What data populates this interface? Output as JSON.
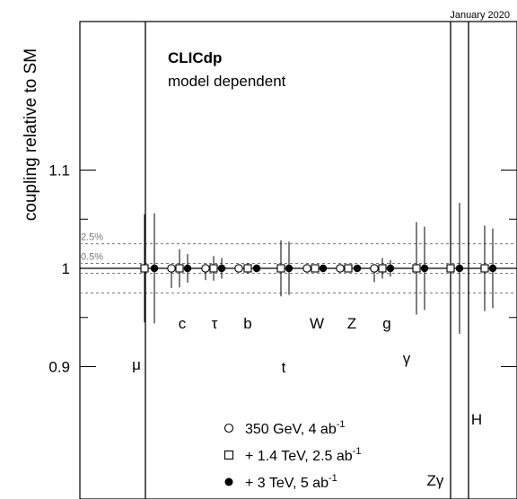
{
  "chart_data": {
    "type": "scatter",
    "title": "CLICdp",
    "subtitle": "model dependent",
    "date_label": "January 2020",
    "ylabel": "coupling relative to SM",
    "ylim": [
      0.88,
      1.125
    ],
    "y_ticks": [
      {
        "value": 0.9,
        "label": "0.9"
      },
      {
        "value": 1.0,
        "label": "1"
      },
      {
        "value": 1.1,
        "label": "1.1"
      }
    ],
    "y_minor_ticks": [
      0.95,
      1.05
    ],
    "reference_lines": [
      {
        "value": 1.025,
        "label": "2.5%"
      },
      {
        "value": 1.005,
        "label": "0.5%"
      },
      {
        "value": 0.995,
        "label": ""
      },
      {
        "value": 0.975,
        "label": ""
      }
    ],
    "categories": [
      "μ",
      "c",
      "τ",
      "b",
      "t",
      "W",
      "Z",
      "g",
      "γ",
      "Zγ",
      "H"
    ],
    "series": [
      {
        "name": "350 GeV, 4 ab",
        "name_sup": "-1",
        "marker": "open-circle",
        "values": [
          null,
          0.98,
          0.988,
          0.996,
          null,
          0.996,
          0.998,
          0.986,
          null,
          null,
          null
        ]
      },
      {
        "name": "+ 1.4 TeV, 2.5 ab",
        "name_sup": "-1",
        "marker": "open-square",
        "values": [
          0.055,
          0.0195,
          0.0125,
          0.0055,
          0.0285,
          0.0035,
          0.0025,
          0.0105,
          0.047,
          0.094,
          0.0435
        ]
      },
      {
        "name": "+ 3 TeV, 5 ab",
        "name_sup": "-1",
        "marker": "filled-circle",
        "values": [
          0.056,
          0.0145,
          0.0105,
          0.004,
          0.027,
          0.003,
          0.002,
          0.0085,
          0.0425,
          0.0665,
          0.0405
        ]
      }
    ],
    "legend_position": "bottom-center",
    "grid": false
  }
}
